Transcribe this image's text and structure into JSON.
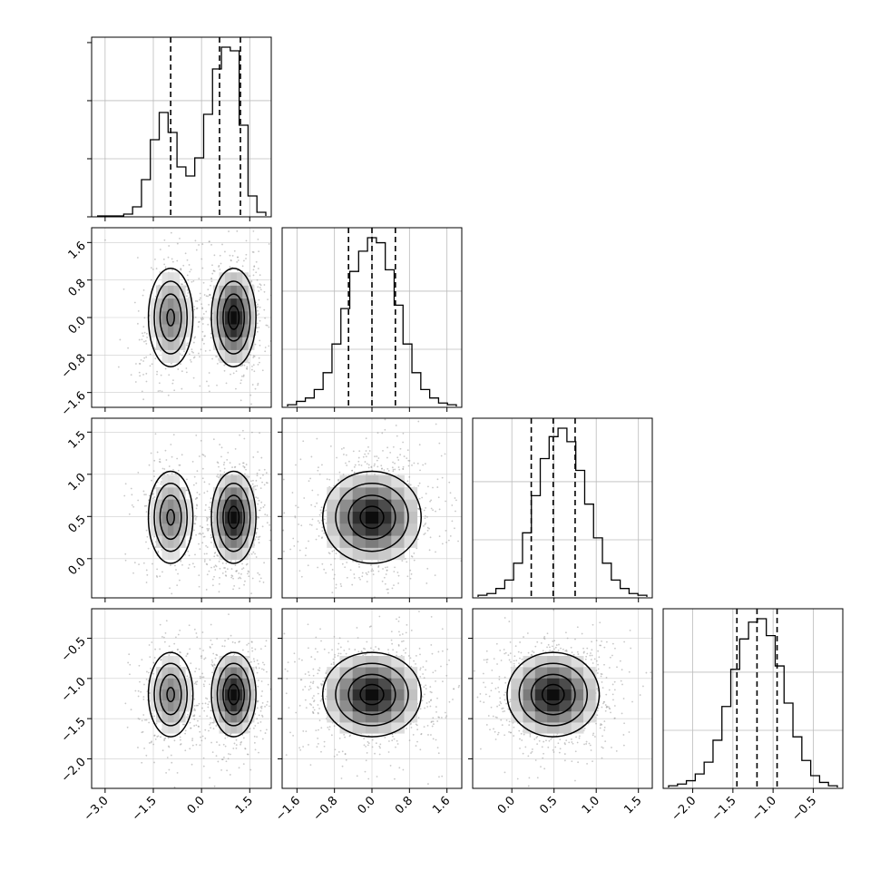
{
  "chart_data": {
    "type": "corner",
    "grid": true,
    "quantile_lines": "dashed",
    "parameters": [
      {
        "range": [
          -3.25,
          2.0
        ],
        "ticks": [
          -3.0,
          -1.5,
          0.0,
          1.5
        ],
        "tick_labels": [
          "−3.0",
          "−1.5",
          "0.0",
          "1.5"
        ],
        "hist_values": [
          0,
          0,
          0,
          0.01,
          0.05,
          0.2,
          0.42,
          0.57,
          0.46,
          0.27,
          0.22,
          0.32,
          0.56,
          0.81,
          0.93,
          0.91,
          0.5,
          0.11,
          0.02
        ],
        "quantiles": [
          -0.96,
          0.56,
          1.21
        ],
        "peaks": [
          [
            -0.96,
            0.05,
            0.6
          ],
          [
            1.0,
            0.02,
            1.0
          ]
        ]
      },
      {
        "range": [
          -1.8,
          1.8
        ],
        "ticks": [
          -1.6,
          -0.8,
          0.0,
          0.8,
          1.6
        ],
        "tick_labels": [
          "−1.6",
          "−0.8",
          "0.0",
          "0.8",
          "1.6"
        ],
        "hist_values": [
          0.01,
          0.03,
          0.05,
          0.1,
          0.2,
          0.37,
          0.58,
          0.8,
          0.92,
          1.0,
          0.97,
          0.81,
          0.6,
          0.37,
          0.2,
          0.1,
          0.05,
          0.02,
          0.01
        ],
        "quantiles": [
          -0.5,
          0.0,
          0.5
        ]
      },
      {
        "range": [
          -0.4,
          1.6
        ],
        "ticks": [
          0.0,
          0.5,
          1.0,
          1.5
        ],
        "tick_labels": [
          "0.0",
          "0.5",
          "1.0",
          "1.5"
        ],
        "hist_values": [
          0.01,
          0.02,
          0.05,
          0.1,
          0.2,
          0.38,
          0.6,
          0.82,
          0.95,
          1.0,
          0.92,
          0.75,
          0.55,
          0.35,
          0.2,
          0.1,
          0.05,
          0.02,
          0.01
        ],
        "quantiles": [
          0.23,
          0.49,
          0.75
        ]
      },
      {
        "range": [
          -2.3,
          -0.2
        ],
        "ticks": [
          -2.0,
          -1.5,
          -1.0,
          -0.5
        ],
        "tick_labels": [
          "−2.0",
          "−1.5",
          "−1.0",
          "−0.5"
        ],
        "hist_values": [
          0.01,
          0.02,
          0.04,
          0.08,
          0.15,
          0.28,
          0.48,
          0.7,
          0.88,
          0.98,
          1.0,
          0.9,
          0.72,
          0.5,
          0.3,
          0.16,
          0.07,
          0.03,
          0.01
        ],
        "quantiles": [
          -1.45,
          -1.2,
          -0.95
        ]
      }
    ],
    "panel_tick_labels": {
      "x": [
        [
          "−3.0",
          "−1.5",
          "0.0",
          "1.5"
        ],
        [
          "−1.6",
          "−0.8",
          "0.0",
          "0.8",
          "1.6"
        ],
        [
          "0.0",
          "0.5",
          "1.0",
          "1.5"
        ],
        [
          "−2.0",
          "−1.5",
          "−1.0",
          "−0.5"
        ]
      ],
      "y": [
        [],
        [
          "−1.6",
          "−0.8",
          "0.0",
          "0.8",
          "1.6"
        ],
        [
          "0.0",
          "0.5",
          "1.0",
          "1.5"
        ],
        [
          "−2.0",
          "−1.5",
          "−1.0",
          "−0.5"
        ]
      ]
    },
    "title": "",
    "xlabel": "",
    "ylabel": ""
  }
}
